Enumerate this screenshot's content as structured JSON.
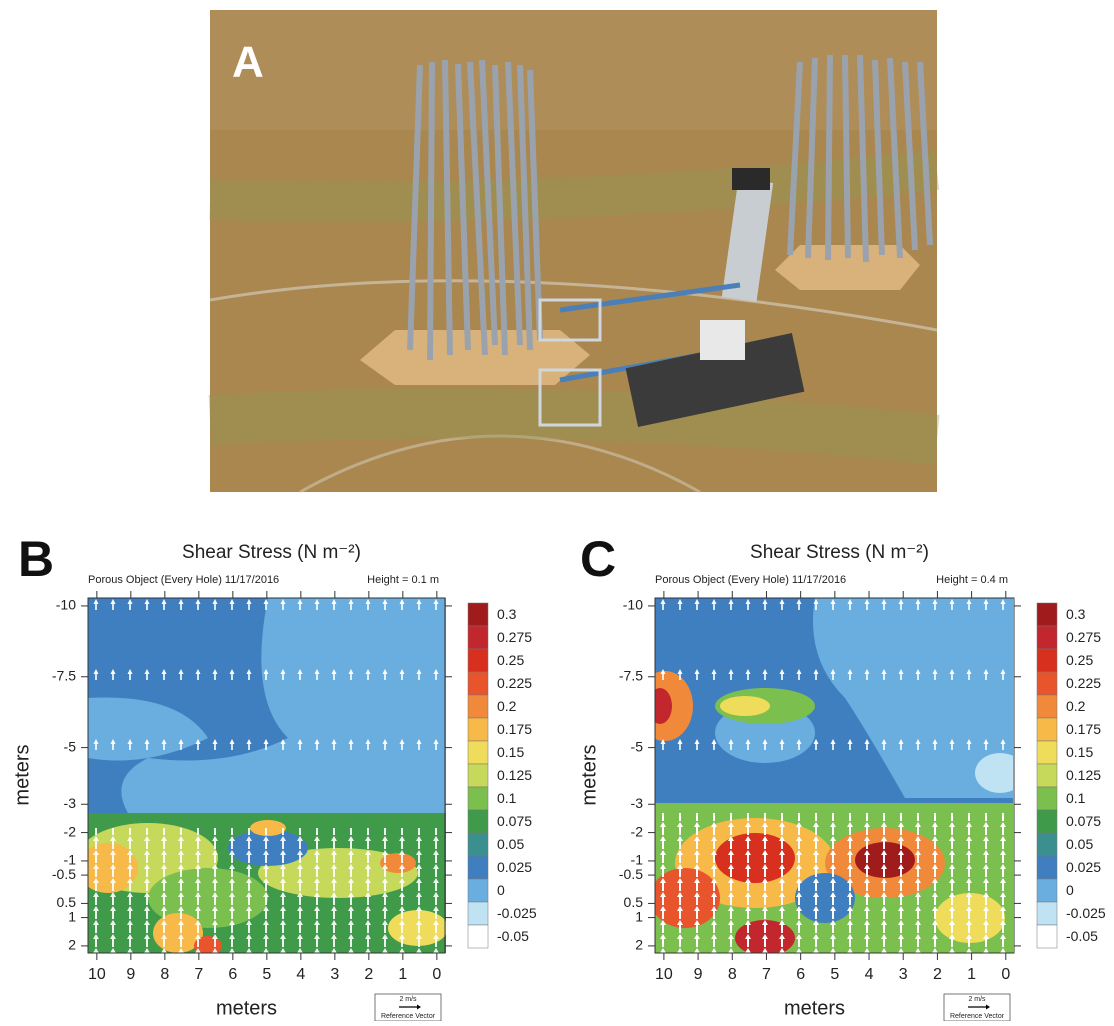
{
  "photo": {
    "label": "A"
  },
  "chart_data": [
    {
      "type": "contour",
      "panel_label": "B",
      "title": "Shear Stress (N m⁻²)",
      "subtitle_left": "Porous Object (Every Hole)  11/17/2016",
      "subtitle_right": "Height = 0.1 m",
      "x_label": "meters",
      "y_label": "meters",
      "xlim": [
        10.26,
        -0.24
      ],
      "xticks": [
        10,
        9,
        8,
        7,
        6,
        5,
        4,
        3,
        2,
        1,
        0
      ],
      "ylim": [
        2.25,
        -10.28
      ],
      "yticks": [
        -10,
        -7.5,
        -5,
        -3,
        -2,
        -1,
        -0.5,
        0.5,
        1,
        2
      ],
      "levels": [
        0.3,
        0.275,
        0.25,
        0.225,
        0.2,
        0.175,
        0.15,
        0.125,
        0.1,
        0.075,
        0.05,
        0.025,
        0,
        -0.025,
        -0.05
      ],
      "colors": [
        "#a01c1c",
        "#c1272d",
        "#d7301f",
        "#e8542b",
        "#f08a3a",
        "#f7b947",
        "#eedc5a",
        "#c6d95a",
        "#7bbf4e",
        "#3f9a4a",
        "#3a8f8f",
        "#3f7fc0",
        "#6aaee0",
        "#bfe3f3",
        "#ffffff"
      ],
      "reference_vector": {
        "magnitude": "2 m/s",
        "label": "Reference Vector"
      }
    },
    {
      "type": "contour",
      "panel_label": "C",
      "title": "Shear Stress (N m⁻²)",
      "subtitle_left": "Porous Object (Every Hole)  11/17/2016",
      "subtitle_right": "Height = 0.4 m",
      "x_label": "meters",
      "y_label": "meters",
      "xlim": [
        10.26,
        -0.24
      ],
      "xticks": [
        10,
        9,
        8,
        7,
        6,
        5,
        4,
        3,
        2,
        1,
        0
      ],
      "ylim": [
        2.25,
        -10.28
      ],
      "yticks": [
        -10,
        -7.5,
        -5,
        -3,
        -2,
        -1,
        -0.5,
        0.5,
        1,
        2
      ],
      "levels": [
        0.3,
        0.275,
        0.25,
        0.225,
        0.2,
        0.175,
        0.15,
        0.125,
        0.1,
        0.075,
        0.05,
        0.025,
        0,
        -0.025,
        -0.05
      ],
      "colors": [
        "#a01c1c",
        "#c1272d",
        "#d7301f",
        "#e8542b",
        "#f08a3a",
        "#f7b947",
        "#eedc5a",
        "#c6d95a",
        "#7bbf4e",
        "#3f9a4a",
        "#3a8f8f",
        "#3f7fc0",
        "#6aaee0",
        "#bfe3f3",
        "#ffffff"
      ],
      "reference_vector": {
        "magnitude": "2 m/s",
        "label": "Reference Vector"
      }
    }
  ]
}
